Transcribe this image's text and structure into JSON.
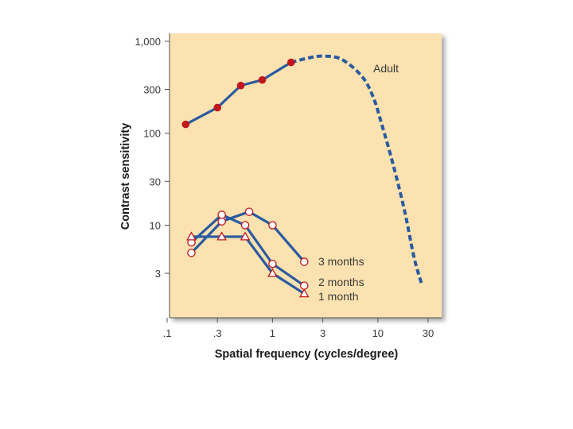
{
  "chart_data": {
    "type": "line",
    "title": "",
    "xlabel": "Spatial frequency (cycles/degree)",
    "ylabel": "Contrast sensitivity",
    "x_scale": "log",
    "y_scale": "log",
    "xlim": [
      0.1,
      30
    ],
    "ylim": [
      1,
      1000
    ],
    "x_ticks": [
      {
        "value": 0.1,
        "label": ".1"
      },
      {
        "value": 0.3,
        "label": ".3"
      },
      {
        "value": 1,
        "label": "1"
      },
      {
        "value": 3,
        "label": "3"
      },
      {
        "value": 10,
        "label": "10"
      },
      {
        "value": 30,
        "label": "30"
      }
    ],
    "y_ticks": [
      {
        "value": 3,
        "label": "3"
      },
      {
        "value": 10,
        "label": "10"
      },
      {
        "value": 30,
        "label": "30"
      },
      {
        "value": 100,
        "label": "100"
      },
      {
        "value": 300,
        "label": "300"
      },
      {
        "value": 1000,
        "label": "1,000"
      }
    ],
    "grid": false,
    "colors": {
      "background": "#fbe2b0",
      "line": "#2a5aa0",
      "adult_marker": "#c0161c",
      "infant_marker_stroke": "#c0161c",
      "infant_marker_fill": "#ffffff"
    },
    "series": [
      {
        "name": "Adult",
        "marker": "filled-circle",
        "x": [
          0.15,
          0.3,
          0.5,
          0.8,
          1.5
        ],
        "y": [
          125,
          190,
          330,
          380,
          590
        ]
      },
      {
        "name": "Adult",
        "marker": "none",
        "line_style": "dashed",
        "x": [
          1.5,
          2.2,
          3,
          4.5,
          7,
          9,
          11,
          14,
          18,
          22,
          26
        ],
        "y": [
          590,
          660,
          690,
          640,
          420,
          250,
          120,
          45,
          14,
          4.5,
          2.3
        ]
      },
      {
        "name": "3 months",
        "marker": "open-circle",
        "x": [
          0.17,
          0.33,
          0.6,
          1.0,
          2.0
        ],
        "y": [
          5,
          11,
          14,
          10,
          4
        ]
      },
      {
        "name": "2 months",
        "marker": "open-circle",
        "x": [
          0.17,
          0.33,
          0.55,
          1.0,
          2.0
        ],
        "y": [
          6.5,
          13,
          10,
          3.8,
          2.2
        ]
      },
      {
        "name": "1 month",
        "marker": "open-triangle",
        "x": [
          0.17,
          0.33,
          0.55,
          1.0,
          2.0
        ],
        "y": [
          7.5,
          7.5,
          7.5,
          3.0,
          1.8
        ]
      }
    ],
    "series_labels": [
      {
        "text": "Adult",
        "at": "curve-peak"
      },
      {
        "text": "3 months",
        "at": "3 months end"
      },
      {
        "text": "2 months",
        "at": "2 months end"
      },
      {
        "text": "1 month",
        "at": "1 month end"
      }
    ]
  }
}
